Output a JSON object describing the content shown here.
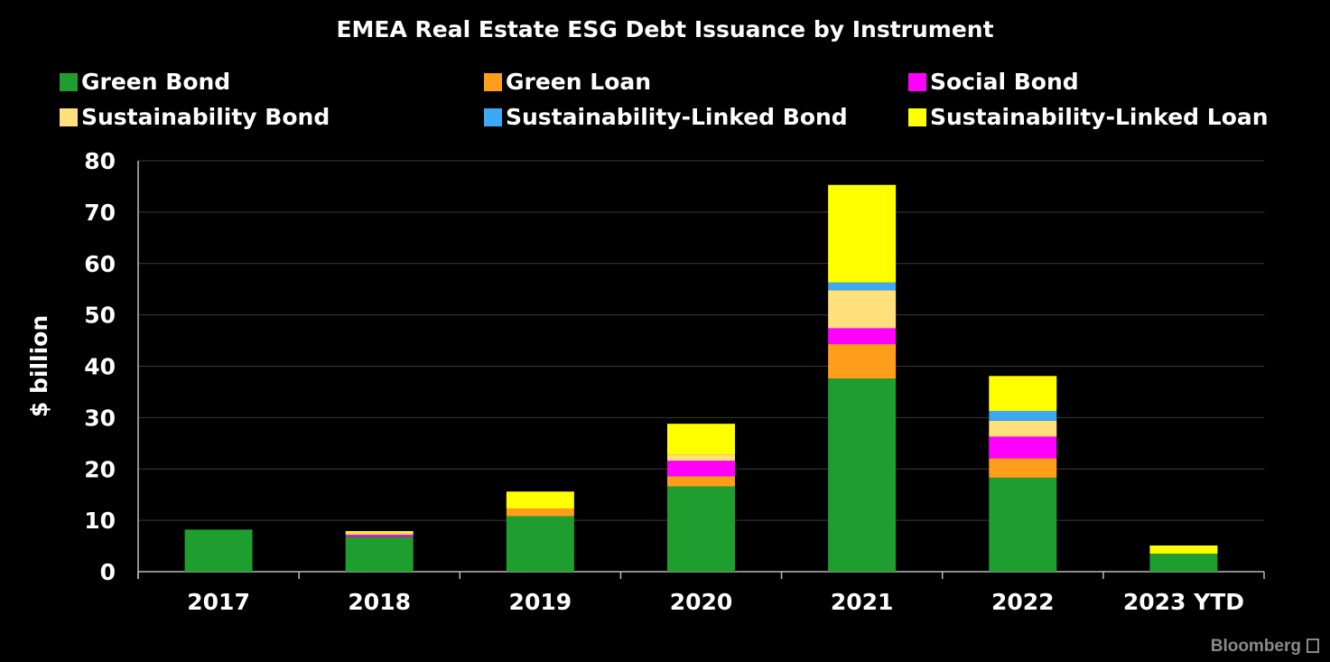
{
  "chart_data": {
    "type": "bar",
    "stacked": true,
    "title": "EMEA Real Estate ESG Debt Issuance by Instrument",
    "ylabel": "$ billion",
    "xlabel": "",
    "ylim": [
      0,
      80
    ],
    "yticks": [
      0,
      10,
      20,
      30,
      40,
      50,
      60,
      70,
      80
    ],
    "grid": true,
    "legend_position": "top",
    "categories": [
      "2017",
      "2018",
      "2019",
      "2020",
      "2021",
      "2022",
      "2023 YTD"
    ],
    "series": [
      {
        "name": "Green Bond",
        "color": "#1e9e2e",
        "values": [
          8.2,
          6.8,
          10.8,
          16.6,
          37.6,
          18.3,
          3.5
        ]
      },
      {
        "name": "Green Loan",
        "color": "#ff9e1b",
        "values": [
          0,
          0,
          1.5,
          2.0,
          6.7,
          3.8,
          0
        ]
      },
      {
        "name": "Social Bond",
        "color": "#ff00ff",
        "values": [
          0,
          0.4,
          0,
          3.0,
          3.1,
          4.2,
          0
        ]
      },
      {
        "name": "Sustainability Bond",
        "color": "#ffe07a",
        "values": [
          0,
          0.3,
          0,
          1.2,
          7.4,
          3.1,
          0
        ]
      },
      {
        "name": "Sustainability-Linked Bond",
        "color": "#3da9f5",
        "values": [
          0,
          0,
          0,
          0,
          1.5,
          1.9,
          0
        ]
      },
      {
        "name": "Sustainability-Linked Loan",
        "color": "#ffff00",
        "values": [
          0,
          0.4,
          3.3,
          6.0,
          19.0,
          6.8,
          1.6
        ]
      }
    ]
  },
  "watermark": "Bloomberg"
}
